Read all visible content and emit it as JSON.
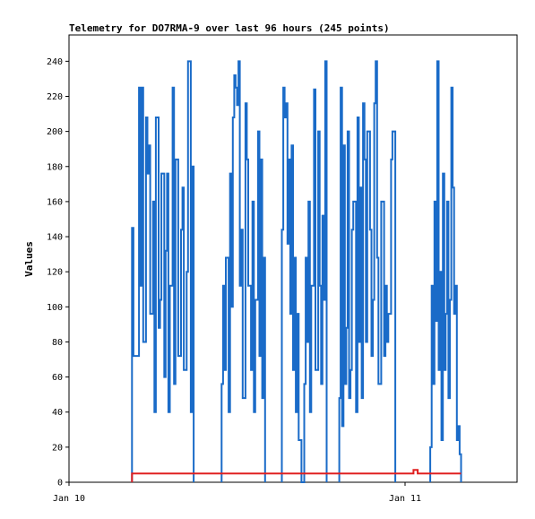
{
  "chart_data": {
    "type": "line",
    "title": "Telemetry for DO7RMA-9 over last 96 hours (245 points)",
    "xlabel": "",
    "ylabel": "Values",
    "x_ticks": [
      {
        "label": "Jan 10",
        "hours": 0
      },
      {
        "label": "Jan 11",
        "hours": 24
      }
    ],
    "x_range_hours": [
      0,
      32
    ],
    "ylim": [
      0,
      255
    ],
    "y_ticks": [
      0,
      20,
      40,
      60,
      80,
      100,
      120,
      140,
      160,
      180,
      200,
      220,
      240
    ],
    "grid": false,
    "legend": "none",
    "series": [
      {
        "color": "#1a6bc8",
        "segments": [
          {
            "x": [
              4.5,
              4.6,
              5.0,
              5.1,
              5.2,
              5.3,
              5.5,
              5.6,
              5.7,
              5.8,
              6.0,
              6.1,
              6.2,
              6.4,
              6.5,
              6.6,
              6.8,
              6.9,
              7.0,
              7.1,
              7.2,
              7.4,
              7.5,
              7.6,
              7.8,
              8.0,
              8.1,
              8.2,
              8.4,
              8.5,
              8.7,
              8.8,
              8.9
            ],
            "y": [
              145,
              72,
              225,
              112,
              225,
              80,
              208,
              176,
              192,
              96,
              160,
              40,
              208,
              88,
              104,
              176,
              60,
              132,
              176,
              40,
              112,
              225,
              56,
              184,
              72,
              144,
              168,
              64,
              120,
              240,
              40,
              180,
              0
            ]
          },
          {
            "x": [
              10.9,
              11.0,
              11.1,
              11.2,
              11.4,
              11.5,
              11.6,
              11.7,
              11.8,
              11.9,
              12.0,
              12.1,
              12.2,
              12.3,
              12.4,
              12.6,
              12.7,
              12.8,
              13.0,
              13.1,
              13.2,
              13.3,
              13.5,
              13.6,
              13.7,
              13.8,
              13.9,
              14.0
            ],
            "y": [
              56,
              112,
              64,
              128,
              40,
              176,
              100,
              208,
              232,
              225,
              215,
              240,
              112,
              144,
              48,
              216,
              184,
              112,
              64,
              160,
              40,
              104,
              200,
              72,
              184,
              48,
              128,
              0
            ]
          },
          {
            "x": [
              15.2,
              15.3,
              15.4,
              15.5,
              15.6,
              15.7,
              15.8,
              15.9,
              16.0,
              16.1,
              16.2,
              16.3,
              16.4,
              16.6,
              16.8,
              16.9,
              17.0,
              17.1,
              17.2,
              17.3,
              17.5,
              17.6,
              17.8,
              17.9,
              18.0,
              18.1,
              18.2,
              18.3,
              18.4
            ],
            "y": [
              144,
              225,
              208,
              216,
              136,
              184,
              96,
              192,
              64,
              128,
              40,
              96,
              24,
              0,
              56,
              128,
              80,
              160,
              40,
              112,
              224,
              64,
              200,
              112,
              56,
              152,
              104,
              240,
              0
            ]
          },
          {
            "x": [
              19.3,
              19.4,
              19.5,
              19.6,
              19.7,
              19.8,
              19.9,
              20.0,
              20.1,
              20.2,
              20.3,
              20.5,
              20.6,
              20.7,
              20.8,
              20.9,
              21.0,
              21.1,
              21.2,
              21.3,
              21.5,
              21.6,
              21.7,
              21.8,
              21.9,
              22.0,
              22.1,
              22.3,
              22.5,
              22.6,
              22.7,
              22.8,
              23.0,
              23.1,
              23.3
            ],
            "y": [
              48,
              225,
              32,
              192,
              56,
              88,
              200,
              48,
              64,
              144,
              160,
              40,
              208,
              80,
              168,
              48,
              216,
              184,
              80,
              200,
              144,
              72,
              104,
              216,
              240,
              128,
              56,
              160,
              72,
              112,
              80,
              96,
              184,
              200,
              0
            ]
          },
          {
            "x": [
              25.8,
              25.9,
              26.0,
              26.1,
              26.2,
              26.3,
              26.4,
              26.5,
              26.6,
              26.7,
              26.8,
              26.9,
              27.0,
              27.1,
              27.2,
              27.3,
              27.4,
              27.5,
              27.6,
              27.7,
              27.8,
              27.9,
              28.0
            ],
            "y": [
              20,
              112,
              56,
              160,
              92,
              240,
              64,
              120,
              24,
              176,
              64,
              96,
              160,
              48,
              104,
              225,
              168,
              96,
              112,
              24,
              32,
              16,
              0
            ]
          }
        ]
      },
      {
        "color": "#e02020",
        "segments": [
          {
            "x": [
              4.5,
              24.3,
              24.6,
              24.9,
              28.0
            ],
            "y": [
              5,
              5,
              7,
              5,
              5
            ]
          }
        ]
      }
    ]
  }
}
